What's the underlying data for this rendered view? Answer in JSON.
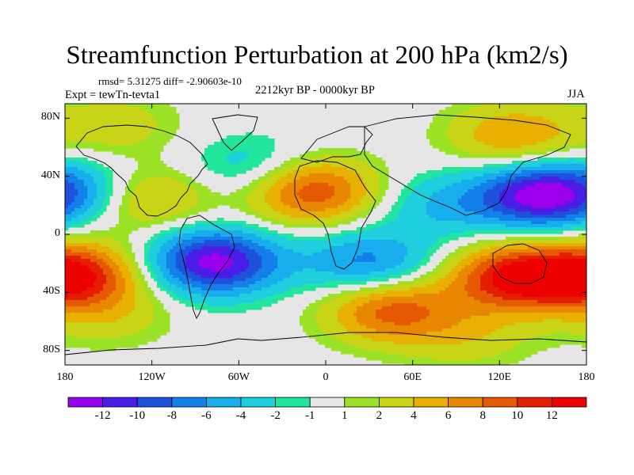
{
  "title": "Streamfunction Perturbation at 200 hPa (km2/s)",
  "stats": "rmsd= 5.31275 diff= -2.90603e-10",
  "period": "2212kyr BP - 0000kyr BP",
  "experiment": "Expt = tewTn-tevta1",
  "season": "JJA",
  "lat_labels": [
    "80N",
    "40N",
    "0",
    "40S",
    "80S"
  ],
  "lon_labels": [
    "180",
    "120W",
    "60W",
    "0",
    "60E",
    "120E",
    "180"
  ],
  "colorbar": {
    "labels": [
      "-12",
      "-10",
      "-8",
      "-6",
      "-4",
      "-2",
      "-1",
      "1",
      "2",
      "4",
      "6",
      "8",
      "10",
      "12"
    ],
    "levels": [
      -12,
      -10,
      -8,
      -6,
      -4,
      -2,
      -1,
      1,
      2,
      4,
      6,
      8,
      10,
      12
    ],
    "colors": [
      "#9a00ec",
      "#4a1de6",
      "#1f52dc",
      "#1280e8",
      "#18aeed",
      "#1fcfde",
      "#22e69c",
      "#e6e6e6",
      "#9be226",
      "#c9d417",
      "#e8b000",
      "#e98700",
      "#e55a00",
      "#e51e00",
      "#ec0000"
    ]
  },
  "chart_data": {
    "type": "heatmap",
    "title": "Streamfunction Perturbation at 200 hPa (km2/s)",
    "x_range": [
      -180,
      180
    ],
    "y_range": [
      -90,
      90
    ],
    "x_ticks": [
      -180,
      -120,
      -60,
      0,
      60,
      120,
      180
    ],
    "y_ticks": [
      80,
      40,
      0,
      -40,
      -80
    ],
    "field_features": [
      {
        "lon": 150,
        "lat": 27,
        "value": -13
      },
      {
        "lon": -77,
        "lat": -19,
        "value": -13
      },
      {
        "lon": -10,
        "lat": 30,
        "value": 10
      },
      {
        "lon": 130,
        "lat": -30,
        "value": 12
      },
      {
        "lon": -175,
        "lat": -28,
        "value": 12
      },
      {
        "lon": 45,
        "lat": -52,
        "value": 9
      },
      {
        "lon": -125,
        "lat": 25,
        "value": 6
      },
      {
        "lon": 130,
        "lat": 68,
        "value": 6
      },
      {
        "lon": -145,
        "lat": 75,
        "value": 3
      },
      {
        "lon": 30,
        "lat": -20,
        "value": -7
      },
      {
        "lon": 80,
        "lat": 20,
        "value": -4
      },
      {
        "lon": -50,
        "lat": 45,
        "value": -4
      },
      {
        "lon": -160,
        "lat": 30,
        "value": -4
      },
      {
        "lon": -150,
        "lat": -55,
        "value": 3
      },
      {
        "lon": 100,
        "lat": -70,
        "value": 3
      }
    ]
  }
}
